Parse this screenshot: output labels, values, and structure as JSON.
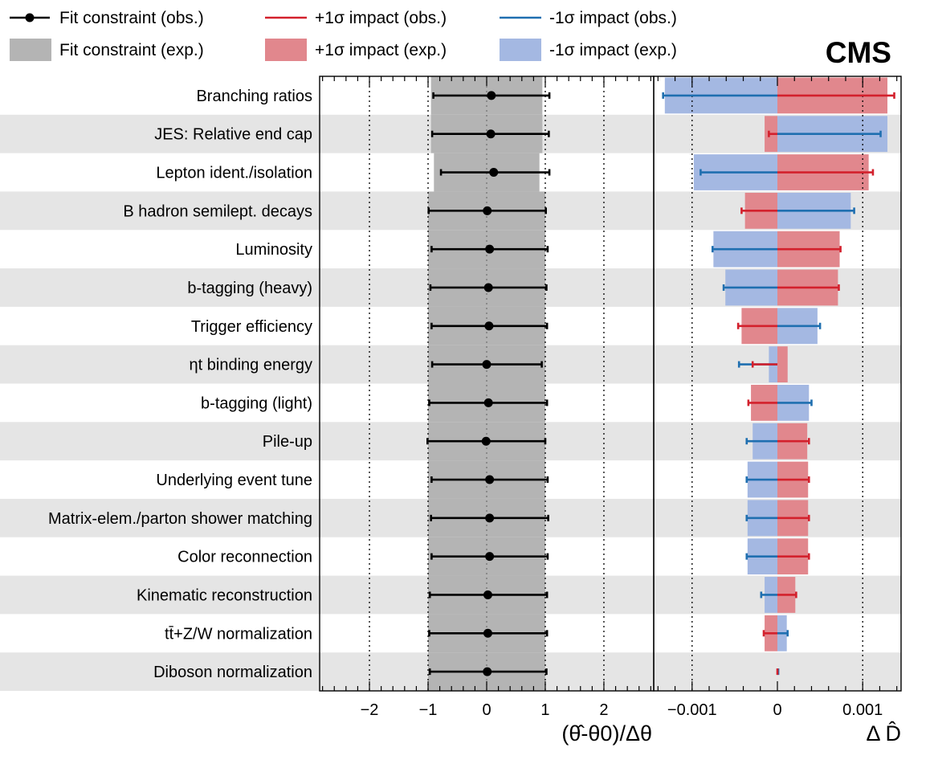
{
  "chart_data": [
    {
      "type": "scatter",
      "title": "",
      "xlabel": "(θ̂-θ0)/Δθ",
      "ylabel": "",
      "xlim": [
        -2.85,
        2.85
      ],
      "xticks": [
        -2,
        -1,
        0,
        1,
        2
      ],
      "tick_labels": [
        "−2",
        "−1",
        "0",
        "1",
        "2"
      ],
      "grid": "dotted verticals at -2, -1, 1, 2 and 0",
      "categories": [
        "Branching ratios",
        "JES: Relative end cap",
        "Lepton ident./isolation",
        "B hadron semilept. decays",
        "Luminosity",
        "b-tagging (heavy)",
        "Trigger efficiency",
        "ηt binding energy",
        "b-tagging (light)",
        "Pile-up",
        "Underlying event tune",
        "Matrix-elem./parton shower matching",
        "Color reconnection",
        "Kinematic reconstruction",
        "tt̄+Z/W normalization",
        "Diboson normalization"
      ],
      "series": [
        {
          "name": "Fit constraint (obs.)",
          "values": [
            0.08,
            0.07,
            0.12,
            0.01,
            0.05,
            0.03,
            0.04,
            0.0,
            0.03,
            -0.01,
            0.05,
            0.05,
            0.05,
            0.02,
            0.02,
            0.01
          ],
          "err_low": [
            -0.91,
            -0.93,
            -0.78,
            -0.99,
            -0.94,
            -0.96,
            -0.94,
            -0.93,
            -0.98,
            -1.01,
            -0.94,
            -0.95,
            -0.94,
            -0.97,
            -0.98,
            -0.97
          ],
          "err_high": [
            1.07,
            1.06,
            1.07,
            1.01,
            1.04,
            1.02,
            1.03,
            0.94,
            1.03,
            1.0,
            1.04,
            1.05,
            1.04,
            1.03,
            1.03,
            1.02
          ]
        },
        {
          "name": "Fit constraint (exp.)",
          "low": [
            -0.95,
            -0.95,
            -0.9,
            -1.0,
            -1.0,
            -1.0,
            -1.0,
            -1.0,
            -1.0,
            -1.0,
            -1.0,
            -1.0,
            -1.0,
            -1.0,
            -1.0,
            -1.0
          ],
          "high": [
            0.95,
            0.95,
            0.9,
            1.0,
            1.0,
            1.0,
            1.0,
            1.0,
            1.0,
            1.0,
            1.0,
            1.0,
            1.0,
            1.0,
            1.0,
            1.0
          ]
        }
      ]
    },
    {
      "type": "bar",
      "title": "",
      "xlabel": "Δ D̂",
      "ylabel": "",
      "xlim": [
        -0.00145,
        0.00145
      ],
      "xticks": [
        -0.001,
        0,
        0.001
      ],
      "tick_labels": [
        "−0.001",
        "0",
        "0.001"
      ],
      "grid": "dotted verticals at -0.001 and 0.001",
      "categories": [
        "Branching ratios",
        "JES: Relative end cap",
        "Lepton ident./isolation",
        "B hadron semilept. decays",
        "Luminosity",
        "b-tagging (heavy)",
        "Trigger efficiency",
        "ηt binding energy",
        "b-tagging (light)",
        "Pile-up",
        "Underlying event tune",
        "Matrix-elem./parton shower matching",
        "Color reconnection",
        "Kinematic reconstruction",
        "tt̄+Z/W normalization",
        "Diboson normalization"
      ],
      "series": [
        {
          "name": "+1σ impact (exp.)",
          "values": [
            0.00129,
            -0.00015,
            0.00107,
            -0.00038,
            0.00073,
            0.00071,
            -0.00042,
            0.00012,
            -0.00031,
            0.00035,
            0.00036,
            0.00036,
            0.00036,
            0.00021,
            -0.00015,
            0.0
          ]
        },
        {
          "name": "-1σ impact (exp.)",
          "values": [
            -0.00132,
            0.00129,
            -0.00098,
            0.00086,
            -0.00075,
            -0.00061,
            0.00047,
            -0.0001,
            0.00037,
            -0.00029,
            -0.00035,
            -0.00035,
            -0.00035,
            -0.00015,
            0.00011,
            0.0
          ]
        },
        {
          "name": "+1σ impact (obs.)",
          "values": [
            0.00137,
            -0.0001,
            0.00112,
            -0.00042,
            0.00074,
            0.00072,
            -0.00046,
            -0.00029,
            -0.00034,
            0.00037,
            0.00037,
            0.00037,
            0.00037,
            0.00022,
            -0.00016,
            0.0
          ]
        },
        {
          "name": "-1σ impact (obs.)",
          "values": [
            -0.00134,
            0.00121,
            -0.0009,
            0.0009,
            -0.00076,
            -0.00063,
            0.0005,
            -0.00045,
            0.0004,
            -0.00036,
            -0.00036,
            -0.00036,
            -0.00036,
            -0.00019,
            0.00012,
            1e-05
          ]
        }
      ]
    }
  ],
  "legend": {
    "items": [
      {
        "label": "Fit constraint (obs.)",
        "kind": "marker",
        "color": "#000000"
      },
      {
        "label": "+1σ impact (obs.)",
        "kind": "line",
        "color": "#d3212d"
      },
      {
        "label": "-1σ impact (obs.)",
        "kind": "line",
        "color": "#1f6fb0"
      },
      {
        "label": "Fit constraint (exp.)",
        "kind": "box",
        "color": "#b4b4b4"
      },
      {
        "label": "+1σ impact (exp.)",
        "kind": "box",
        "color": "#e1878d"
      },
      {
        "label": "-1σ impact (exp.)",
        "kind": "box",
        "color": "#a4b8e2"
      }
    ],
    "placement": "top"
  },
  "experiment": "CMS",
  "colors": {
    "obs_marker": "#000000",
    "band_exp": "#b4b4b4",
    "plus_obs": "#d3212d",
    "minus_obs": "#1f6fb0",
    "plus_exp": "#e1878d",
    "minus_exp": "#a4b8e2",
    "row_shade": "#e5e5e5"
  }
}
